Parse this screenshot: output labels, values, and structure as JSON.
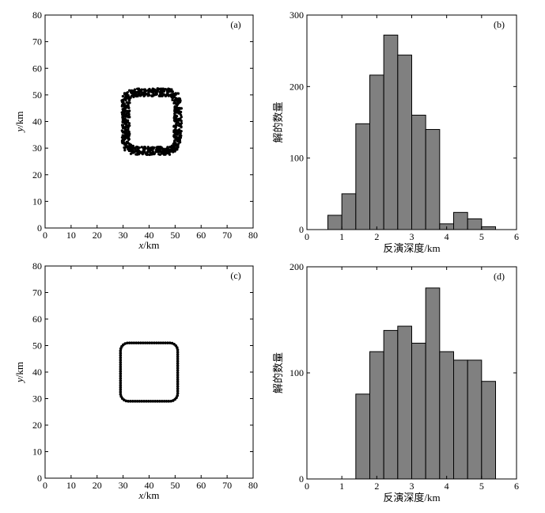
{
  "chart_data": [
    {
      "panel": "(a)",
      "type": "scatter",
      "xlabel_var": "x",
      "xlabel_unit": "/km",
      "ylabel_var": "y",
      "ylabel_unit": "/km",
      "xlim": [
        0,
        80
      ],
      "ylim": [
        0,
        80
      ],
      "xticks": [
        0,
        10,
        20,
        30,
        40,
        50,
        60,
        70,
        80
      ],
      "yticks": [
        0,
        10,
        20,
        30,
        40,
        50,
        60,
        70,
        80
      ],
      "grid": false,
      "shape": "dense ring of points around a square boundary",
      "ring": {
        "xmin": 31,
        "xmax": 51,
        "ymin": 29,
        "ymax": 51,
        "corner_radius": 4,
        "band_width": 3
      }
    },
    {
      "panel": "(b)",
      "type": "bar",
      "xlabel": "反演深度/km",
      "ylabel": "解的数量",
      "xlim": [
        0,
        6
      ],
      "ylim": [
        0,
        300
      ],
      "xticks": [
        0,
        1,
        2,
        3,
        4,
        5,
        6
      ],
      "yticks": [
        0,
        100,
        200,
        300
      ],
      "bin_width": 0.4,
      "bins": [
        {
          "x": 0.8,
          "value": 20
        },
        {
          "x": 1.2,
          "value": 50
        },
        {
          "x": 1.6,
          "value": 148
        },
        {
          "x": 2.0,
          "value": 216
        },
        {
          "x": 2.4,
          "value": 272
        },
        {
          "x": 2.8,
          "value": 244
        },
        {
          "x": 3.2,
          "value": 160
        },
        {
          "x": 3.6,
          "value": 140
        },
        {
          "x": 4.0,
          "value": 8
        },
        {
          "x": 4.4,
          "value": 24
        },
        {
          "x": 4.8,
          "value": 15
        },
        {
          "x": 5.2,
          "value": 4
        }
      ],
      "bar_color": "#808080"
    },
    {
      "panel": "(c)",
      "type": "scatter",
      "xlabel_var": "x",
      "xlabel_unit": "/km",
      "ylabel_var": "y",
      "ylabel_unit": "/km",
      "xlim": [
        0,
        80
      ],
      "ylim": [
        0,
        80
      ],
      "xticks": [
        0,
        10,
        20,
        30,
        40,
        50,
        60,
        70,
        80
      ],
      "yticks": [
        0,
        10,
        20,
        30,
        40,
        50,
        60,
        70,
        80
      ],
      "grid": false,
      "shape": "sparse points around a square boundary",
      "ring": {
        "xmin": 29,
        "xmax": 51,
        "ymin": 29,
        "ymax": 51,
        "corner_radius": 3
      }
    },
    {
      "panel": "(d)",
      "type": "bar",
      "xlabel": "反演深度/km",
      "ylabel": "解的数量",
      "xlim": [
        0,
        6
      ],
      "ylim": [
        0,
        200
      ],
      "xticks": [
        0,
        1,
        2,
        3,
        4,
        5,
        6
      ],
      "yticks": [
        0,
        100,
        200
      ],
      "bin_width": 0.4,
      "bins": [
        {
          "x": 1.6,
          "value": 80
        },
        {
          "x": 2.0,
          "value": 120
        },
        {
          "x": 2.4,
          "value": 140
        },
        {
          "x": 2.8,
          "value": 144
        },
        {
          "x": 3.2,
          "value": 128
        },
        {
          "x": 3.6,
          "value": 180
        },
        {
          "x": 4.0,
          "value": 120
        },
        {
          "x": 4.4,
          "value": 112
        },
        {
          "x": 4.8,
          "value": 112
        },
        {
          "x": 5.2,
          "value": 92
        }
      ],
      "bar_color": "#808080"
    }
  ]
}
